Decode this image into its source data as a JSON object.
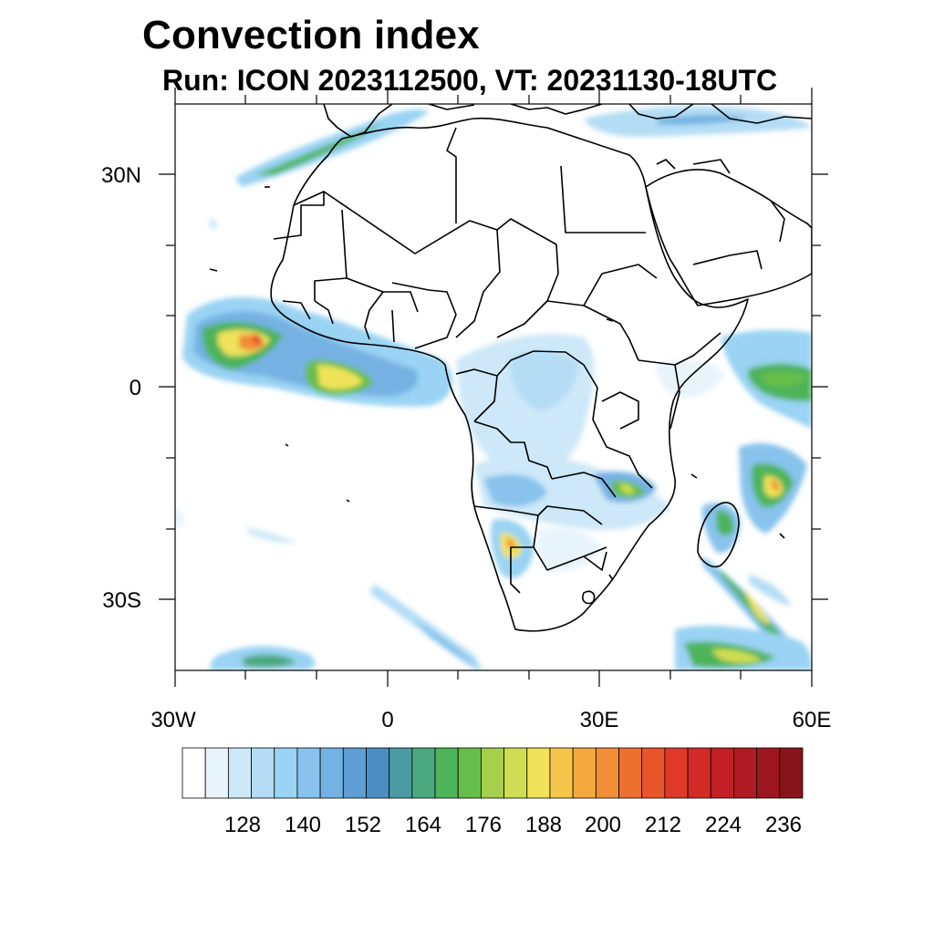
{
  "title": "Convection index",
  "subtitle": "Run: ICON 2023112500,  VT: 20231130-18UTC",
  "map": {
    "region": "Africa",
    "lon_range": [
      -30,
      60
    ],
    "lat_range": [
      -40,
      40
    ],
    "lat_labels": [
      "30N",
      "0",
      "30S"
    ],
    "lon_labels": [
      "30W",
      "0",
      "30E",
      "60E"
    ]
  },
  "colorbar": {
    "labels": [
      "128",
      "140",
      "152",
      "164",
      "176",
      "188",
      "200",
      "212",
      "224",
      "236"
    ],
    "colors": [
      "#ffffff",
      "#e8f4fc",
      "#cde8f8",
      "#b4ddf5",
      "#9ad3f3",
      "#87c3ec",
      "#74b2e3",
      "#5e9ed4",
      "#4a8fc4",
      "#4a9aa3",
      "#4ba87e",
      "#4eb45a",
      "#66be4a",
      "#a5cf4c",
      "#cfdd52",
      "#f0e35a",
      "#f6c64c",
      "#f5a83f",
      "#f28d36",
      "#ee702f",
      "#e8552b",
      "#df3a29",
      "#d32a28",
      "#c21f26",
      "#b01a23",
      "#9d171f",
      "#881319"
    ]
  }
}
